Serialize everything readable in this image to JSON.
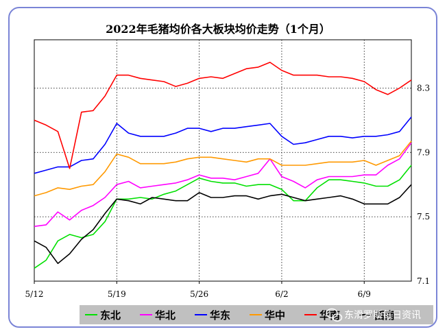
{
  "chart_data": {
    "type": "line",
    "title": "2022年毛猪均价各大板块均价走势（1个月）",
    "x": [
      "5/12",
      "5/13",
      "5/14",
      "5/15",
      "5/16",
      "5/17",
      "5/18",
      "5/19",
      "5/20",
      "5/21",
      "5/22",
      "5/23",
      "5/24",
      "5/25",
      "5/26",
      "5/27",
      "5/28",
      "5/29",
      "5/30",
      "5/31",
      "6/1",
      "6/2",
      "6/3",
      "6/4",
      "6/5",
      "6/6",
      "6/7",
      "6/8",
      "6/9",
      "6/10",
      "6/11",
      "6/12",
      "6/13"
    ],
    "x_tick_labels": [
      "5/12",
      "5/19",
      "5/26",
      "6/2",
      "6/9"
    ],
    "y_tick_labels": [
      "7.1",
      "7.5",
      "7.9",
      "8.3"
    ],
    "ylim": [
      7.1,
      8.6
    ],
    "grid": "dotted at y tick values and x tick dates",
    "legend_position": "bottom",
    "series": [
      {
        "name": "东北",
        "color": "#00e000",
        "values": [
          7.18,
          7.23,
          7.35,
          7.39,
          7.37,
          7.39,
          7.47,
          7.61,
          7.61,
          7.62,
          7.61,
          7.64,
          7.66,
          7.7,
          7.74,
          7.72,
          7.71,
          7.71,
          7.69,
          7.7,
          7.7,
          7.67,
          7.6,
          7.6,
          7.68,
          7.73,
          7.73,
          7.72,
          7.71,
          7.69,
          7.69,
          7.73,
          7.82
        ]
      },
      {
        "name": "华北",
        "color": "#ff00ff",
        "values": [
          7.44,
          7.45,
          7.53,
          7.48,
          7.54,
          7.57,
          7.62,
          7.7,
          7.72,
          7.68,
          7.69,
          7.7,
          7.71,
          7.73,
          7.76,
          7.74,
          7.74,
          7.73,
          7.75,
          7.77,
          7.86,
          7.75,
          7.72,
          7.68,
          7.73,
          7.75,
          7.75,
          7.75,
          7.76,
          7.76,
          7.82,
          7.86,
          7.96
        ]
      },
      {
        "name": "华东",
        "color": "#0000ff",
        "values": [
          7.77,
          7.79,
          7.81,
          7.81,
          7.85,
          7.86,
          7.95,
          8.08,
          8.02,
          8.0,
          8.0,
          8.0,
          8.02,
          8.05,
          8.05,
          8.03,
          8.05,
          8.05,
          8.06,
          8.07,
          8.08,
          8.0,
          7.95,
          7.96,
          7.98,
          8.0,
          8.0,
          7.99,
          8.0,
          8.0,
          8.01,
          8.03,
          8.12
        ]
      },
      {
        "name": "华中",
        "color": "#ff9900",
        "values": [
          7.63,
          7.65,
          7.68,
          7.67,
          7.69,
          7.7,
          7.78,
          7.89,
          7.87,
          7.83,
          7.83,
          7.83,
          7.84,
          7.86,
          7.87,
          7.87,
          7.86,
          7.85,
          7.84,
          7.86,
          7.86,
          7.82,
          7.82,
          7.82,
          7.83,
          7.84,
          7.84,
          7.84,
          7.85,
          7.82,
          7.85,
          7.88,
          7.97
        ]
      },
      {
        "name": "华南",
        "color": "#ff0000",
        "values": [
          8.1,
          8.07,
          8.03,
          7.8,
          8.15,
          8.16,
          8.25,
          8.38,
          8.38,
          8.36,
          8.35,
          8.34,
          8.31,
          8.33,
          8.36,
          8.37,
          8.36,
          8.39,
          8.42,
          8.43,
          8.46,
          8.41,
          8.38,
          8.38,
          8.38,
          8.37,
          8.37,
          8.36,
          8.34,
          8.29,
          8.26,
          8.3,
          8.35
        ]
      },
      {
        "name": "西南",
        "color": "#000000",
        "values": [
          7.35,
          7.31,
          7.21,
          7.27,
          7.36,
          7.42,
          7.52,
          7.61,
          7.6,
          7.58,
          7.62,
          7.61,
          7.6,
          7.6,
          7.65,
          7.62,
          7.62,
          7.63,
          7.63,
          7.61,
          7.63,
          7.64,
          7.62,
          7.6,
          7.61,
          7.62,
          7.63,
          7.61,
          7.58,
          7.58,
          7.58,
          7.62,
          7.7
        ]
      }
    ]
  },
  "watermark": "东滑罗斯每日资讯",
  "colors": {
    "frame": "#7a84d6",
    "legend_bg": "#c0c0c0"
  }
}
